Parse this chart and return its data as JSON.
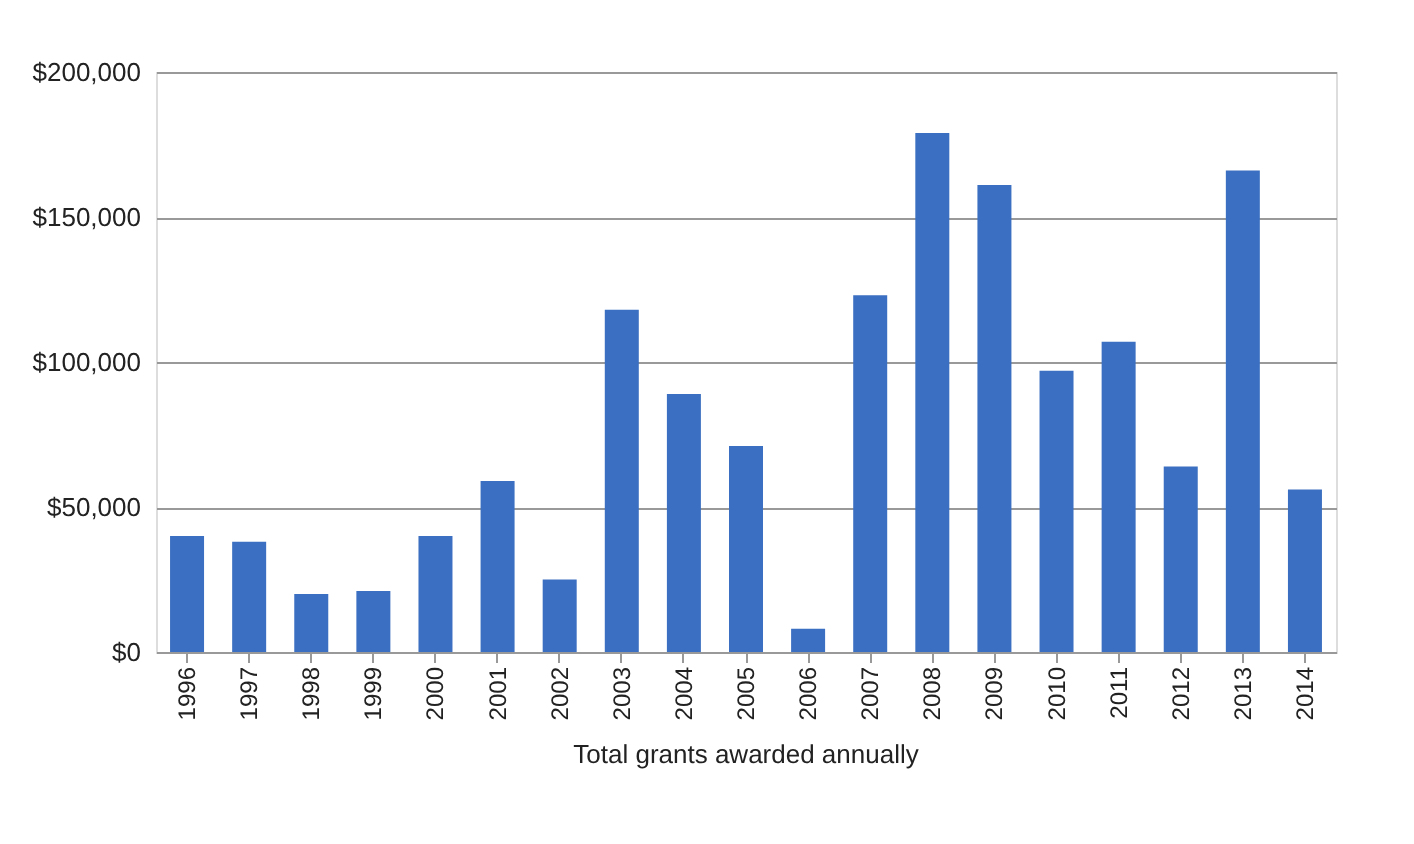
{
  "chart_data": {
    "type": "bar",
    "title": "Total grants awarded annually",
    "categories": [
      "1996",
      "1997",
      "1998",
      "1999",
      "2000",
      "2001",
      "2002",
      "2003",
      "2004",
      "2005",
      "2006",
      "2007",
      "2008",
      "2009",
      "2010",
      "2011",
      "2012",
      "2013",
      "2014"
    ],
    "values": [
      40000,
      38000,
      20000,
      21000,
      40000,
      59000,
      25000,
      118000,
      89000,
      71000,
      8000,
      123000,
      179000,
      161000,
      97000,
      107000,
      64000,
      166000,
      56000
    ],
    "color": "#3b6fc1",
    "ylim": [
      0,
      200000
    ],
    "yticks": [
      {
        "value": 0,
        "label": "$0"
      },
      {
        "value": 50000,
        "label": "$50,000"
      },
      {
        "value": 100000,
        "label": "$100,000"
      },
      {
        "value": 150000,
        "label": "$150,000"
      },
      {
        "value": 200000,
        "label": "$200,000"
      }
    ],
    "grid": "y"
  }
}
